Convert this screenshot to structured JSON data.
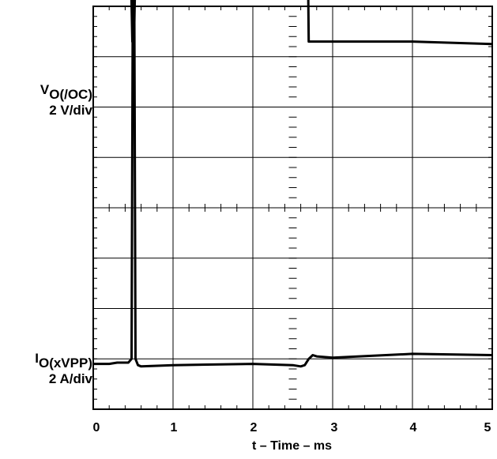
{
  "chart_data": {
    "type": "line",
    "grid": true,
    "xlabel": "t – Time – ms",
    "xlim": [
      0,
      5
    ],
    "x_ticks": [
      "0",
      "1",
      "2",
      "3",
      "4",
      "5"
    ],
    "channels": [
      {
        "name_main": "V",
        "name_sub": "O(/OC)",
        "scale": "2 V/div",
        "units_per_div": 2,
        "reference_div": 5,
        "series": {
          "x": [
            0,
            0.45,
            0.49,
            0.51,
            0.55,
            2.63,
            2.68,
            2.7,
            3.0,
            4.0,
            5.0
          ],
          "y": [
            10.8,
            10.8,
            4.6,
            4.6,
            10.8,
            10.8,
            10.8,
            4.6,
            4.6,
            4.6,
            4.5
          ]
        }
      },
      {
        "name_main": "I",
        "name_sub": "O(xVPP)",
        "scale": "2 A/div",
        "units_per_div": 2,
        "reference_div": 0.5,
        "series": {
          "x": [
            0,
            0.2,
            0.3,
            0.44,
            0.48,
            0.5,
            0.51,
            0.53,
            0.56,
            0.6,
            1.0,
            2.0,
            2.5,
            2.6,
            2.65,
            2.7,
            2.75,
            2.8,
            3.0,
            4.0,
            5.0
          ],
          "y": [
            0.8,
            0.8,
            0.85,
            0.85,
            1.0,
            19.5,
            19.5,
            1.0,
            0.75,
            0.7,
            0.75,
            0.8,
            0.75,
            0.7,
            0.75,
            1.0,
            1.15,
            1.1,
            1.05,
            1.2,
            1.15
          ]
        }
      }
    ]
  }
}
